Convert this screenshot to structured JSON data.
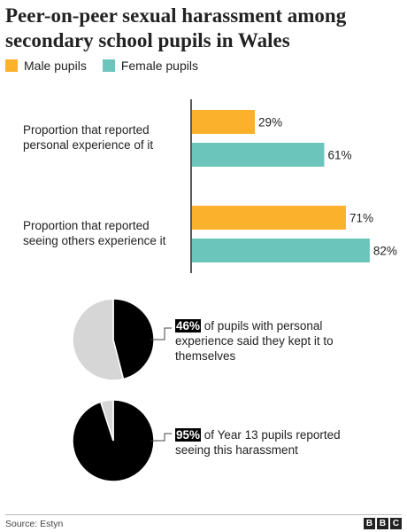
{
  "title": "Peer-on-peer sexual harassment among secondary school pupils in Wales",
  "colors": {
    "male": "#fbb12b",
    "female": "#6bc5bb",
    "pie_dark": "#000000",
    "pie_light": "#d6d6d6"
  },
  "legend": [
    {
      "label": "Male pupils",
      "color": "#fbb12b"
    },
    {
      "label": "Female pupils",
      "color": "#6bc5bb"
    }
  ],
  "chart_data": [
    {
      "type": "bar",
      "orientation": "horizontal",
      "categories": [
        "Proportion that reported personal experience of it",
        "Proportion that reported seeing others experience it"
      ],
      "category_lines": [
        [
          "Proportion that reported",
          "personal experience of it"
        ],
        [
          "Proportion that reported",
          "seeing others experience it"
        ]
      ],
      "series": [
        {
          "name": "Male pupils",
          "values": [
            29,
            71
          ],
          "labels": [
            "29%",
            "71%"
          ],
          "color": "#fbb12b"
        },
        {
          "name": "Female pupils",
          "values": [
            61,
            82
          ],
          "labels": [
            "61%",
            "82%"
          ],
          "color": "#6bc5bb"
        }
      ],
      "xlim": [
        0,
        100
      ],
      "legend_position": "top-left",
      "grid": false
    },
    {
      "type": "pie",
      "values": [
        46,
        54
      ],
      "highlight": "46%",
      "description": "of pupils with personal experience said they kept it to themselves"
    },
    {
      "type": "pie",
      "values": [
        95,
        5
      ],
      "highlight": "95%",
      "description": "of Year 13 pupils reported seeing this harassment"
    }
  ],
  "footer": {
    "source": "Source: Estyn",
    "logo": [
      "B",
      "B",
      "C"
    ]
  }
}
